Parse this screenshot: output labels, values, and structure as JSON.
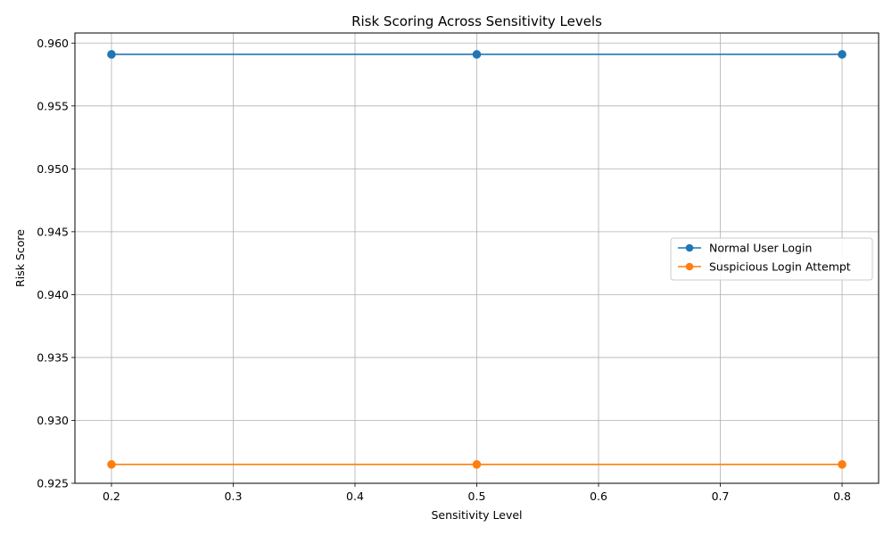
{
  "chart_data": {
    "type": "line",
    "title": "Risk Scoring Across Sensitivity Levels",
    "xlabel": "Sensitivity Level",
    "ylabel": "Risk Score",
    "x": [
      0.2,
      0.5,
      0.8
    ],
    "xlim": [
      0.17,
      0.83
    ],
    "ylim": [
      0.925,
      0.9608
    ],
    "xticks": [
      0.2,
      0.3,
      0.4,
      0.5,
      0.6,
      0.7,
      0.8
    ],
    "xtick_labels": [
      "0.2",
      "0.3",
      "0.4",
      "0.5",
      "0.6",
      "0.7",
      "0.8"
    ],
    "yticks": [
      0.925,
      0.93,
      0.935,
      0.94,
      0.945,
      0.95,
      0.955,
      0.96
    ],
    "ytick_labels": [
      "0.925",
      "0.930",
      "0.935",
      "0.940",
      "0.945",
      "0.950",
      "0.955",
      "0.960"
    ],
    "grid": true,
    "legend_position": "center-right",
    "series": [
      {
        "name": "Normal User Login",
        "values": [
          0.9591,
          0.9591,
          0.9591
        ],
        "color": "#1f77b4",
        "marker": "circle"
      },
      {
        "name": "Suspicious Login Attempt",
        "values": [
          0.9265,
          0.9265,
          0.9265
        ],
        "color": "#ff7f0e",
        "marker": "circle"
      }
    ]
  }
}
